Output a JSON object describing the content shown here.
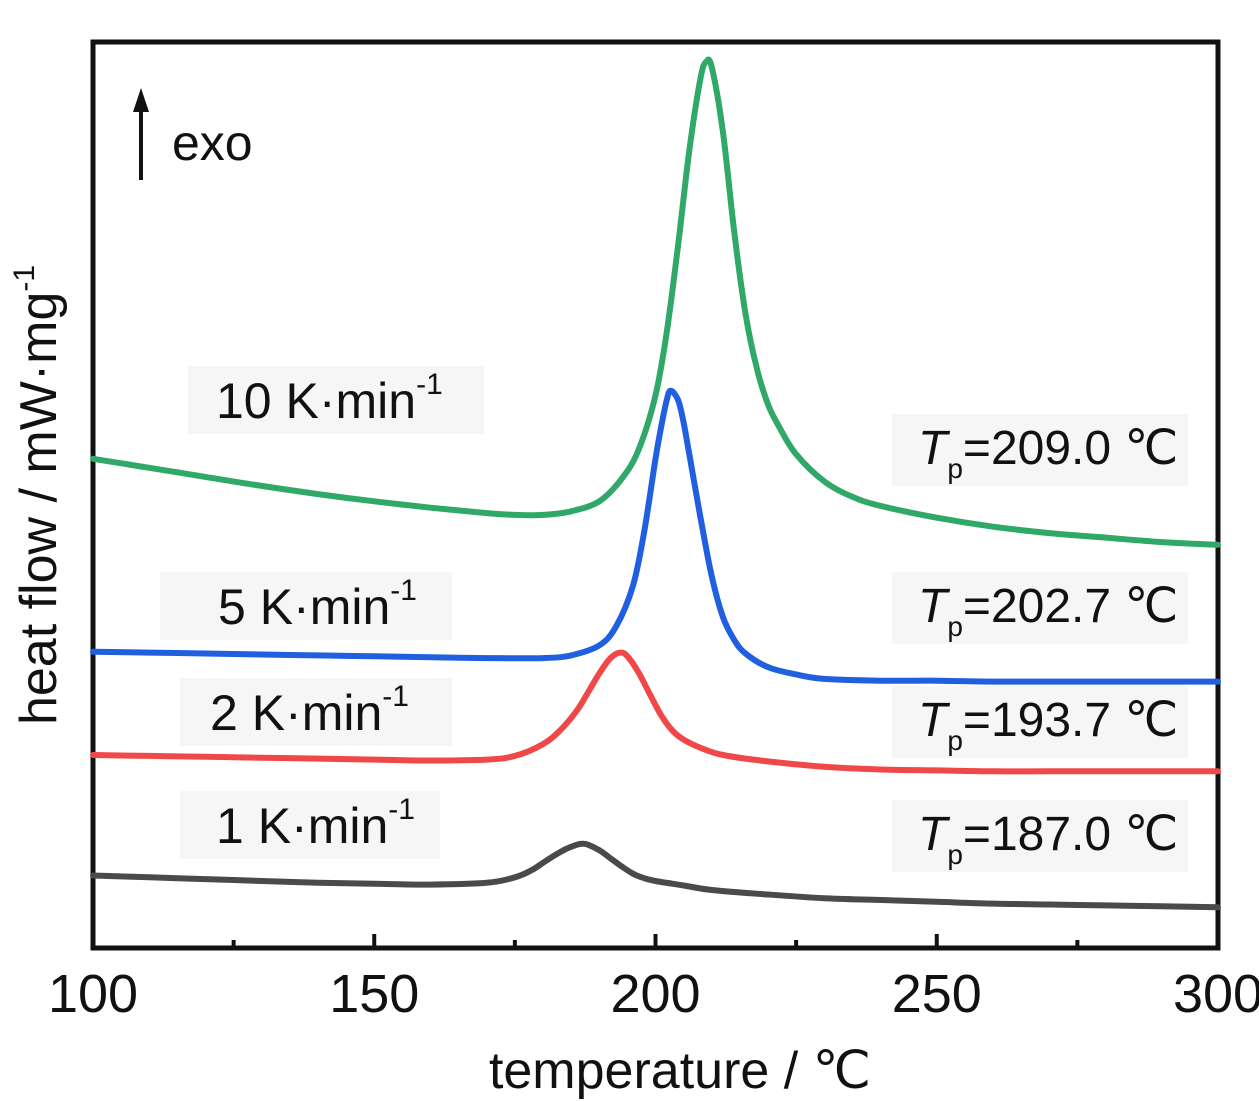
{
  "chart_data": {
    "type": "line",
    "xlabel": "temperature / ℃",
    "ylabel": "heat flow / mW·mg",
    "ylabel_sup": "-1",
    "xlim": [
      100,
      300
    ],
    "ylim": [
      0,
      10
    ],
    "x_ticks": [
      100,
      150,
      200,
      250,
      300
    ],
    "x_minor_ticks": [
      125,
      175,
      225,
      275
    ],
    "y_ticks_shown": false,
    "grid": false,
    "annotation": {
      "text": "exo",
      "arrow": "up"
    },
    "series": [
      {
        "name": "1 K·min",
        "name_sup": "-1",
        "color": "#4a4a4a",
        "peak_label": {
          "symbol": "T",
          "sub": "p",
          "value": "=187.0 ℃"
        },
        "x": [
          100,
          110,
          120,
          130,
          140,
          150,
          160,
          170,
          175,
          178,
          180,
          182,
          184,
          186,
          187,
          188,
          190,
          192,
          194,
          196,
          198,
          200,
          205,
          210,
          220,
          230,
          240,
          250,
          260,
          270,
          280,
          290,
          300
        ],
        "y": [
          0.8,
          0.78,
          0.76,
          0.74,
          0.72,
          0.71,
          0.7,
          0.72,
          0.78,
          0.86,
          0.94,
          1.02,
          1.09,
          1.14,
          1.15,
          1.14,
          1.08,
          0.99,
          0.9,
          0.82,
          0.77,
          0.74,
          0.69,
          0.64,
          0.59,
          0.55,
          0.53,
          0.51,
          0.49,
          0.48,
          0.47,
          0.46,
          0.45
        ]
      },
      {
        "name": "2 K·min",
        "name_sup": "-1",
        "color": "#f04848",
        "peak_label": {
          "symbol": "T",
          "sub": "p",
          "value": "=193.7 ℃"
        },
        "x": [
          100,
          110,
          120,
          130,
          140,
          150,
          160,
          170,
          175,
          180,
          183,
          186,
          188,
          190,
          192,
          193.7,
          195,
          197,
          199,
          201,
          203,
          205,
          208,
          212,
          220,
          230,
          240,
          250,
          260,
          270,
          280,
          290,
          300
        ],
        "y": [
          2.13,
          2.12,
          2.11,
          2.1,
          2.09,
          2.08,
          2.07,
          2.08,
          2.12,
          2.25,
          2.4,
          2.62,
          2.82,
          3.03,
          3.2,
          3.26,
          3.22,
          3.04,
          2.8,
          2.57,
          2.4,
          2.3,
          2.21,
          2.13,
          2.06,
          2.0,
          1.97,
          1.96,
          1.95,
          1.95,
          1.95,
          1.95,
          1.95
        ]
      },
      {
        "name": "5 K·min",
        "name_sup": "-1",
        "color": "#2060e0",
        "peak_label": {
          "symbol": "T",
          "sub": "p",
          "value": "=202.7 ℃"
        },
        "x": [
          100,
          110,
          120,
          130,
          140,
          150,
          160,
          170,
          180,
          185,
          190,
          193,
          196,
          198,
          200,
          201,
          202,
          202.7,
          204,
          205,
          206,
          208,
          210,
          212,
          214,
          216,
          220,
          225,
          230,
          240,
          250,
          260,
          270,
          280,
          290,
          300
        ],
        "y": [
          3.27,
          3.26,
          3.25,
          3.24,
          3.23,
          3.22,
          3.21,
          3.2,
          3.2,
          3.23,
          3.34,
          3.55,
          4.0,
          4.6,
          5.4,
          5.75,
          6.05,
          6.15,
          6.05,
          5.8,
          5.45,
          4.75,
          4.1,
          3.65,
          3.4,
          3.25,
          3.1,
          3.02,
          2.97,
          2.95,
          2.95,
          2.94,
          2.94,
          2.94,
          2.94,
          2.94
        ]
      },
      {
        "name": "10 K·min",
        "name_sup": "-1",
        "color": "#30a868",
        "peak_label": {
          "symbol": "T",
          "sub": "p",
          "value": "=209.0 ℃"
        },
        "x": [
          100,
          110,
          120,
          130,
          140,
          150,
          160,
          170,
          175,
          180,
          185,
          190,
          194,
          197,
          200,
          202,
          204,
          206,
          208,
          209,
          210,
          212,
          214,
          216,
          218,
          220,
          222,
          225,
          230,
          235,
          240,
          250,
          260,
          270,
          280,
          290,
          300
        ],
        "y": [
          5.4,
          5.3,
          5.2,
          5.1,
          5.01,
          4.93,
          4.86,
          4.8,
          4.78,
          4.78,
          4.82,
          4.93,
          5.18,
          5.5,
          6.1,
          6.8,
          7.75,
          8.8,
          9.6,
          9.78,
          9.72,
          9.0,
          7.9,
          7.0,
          6.4,
          6.0,
          5.75,
          5.45,
          5.15,
          4.98,
          4.88,
          4.75,
          4.65,
          4.58,
          4.53,
          4.48,
          4.45
        ]
      }
    ]
  }
}
